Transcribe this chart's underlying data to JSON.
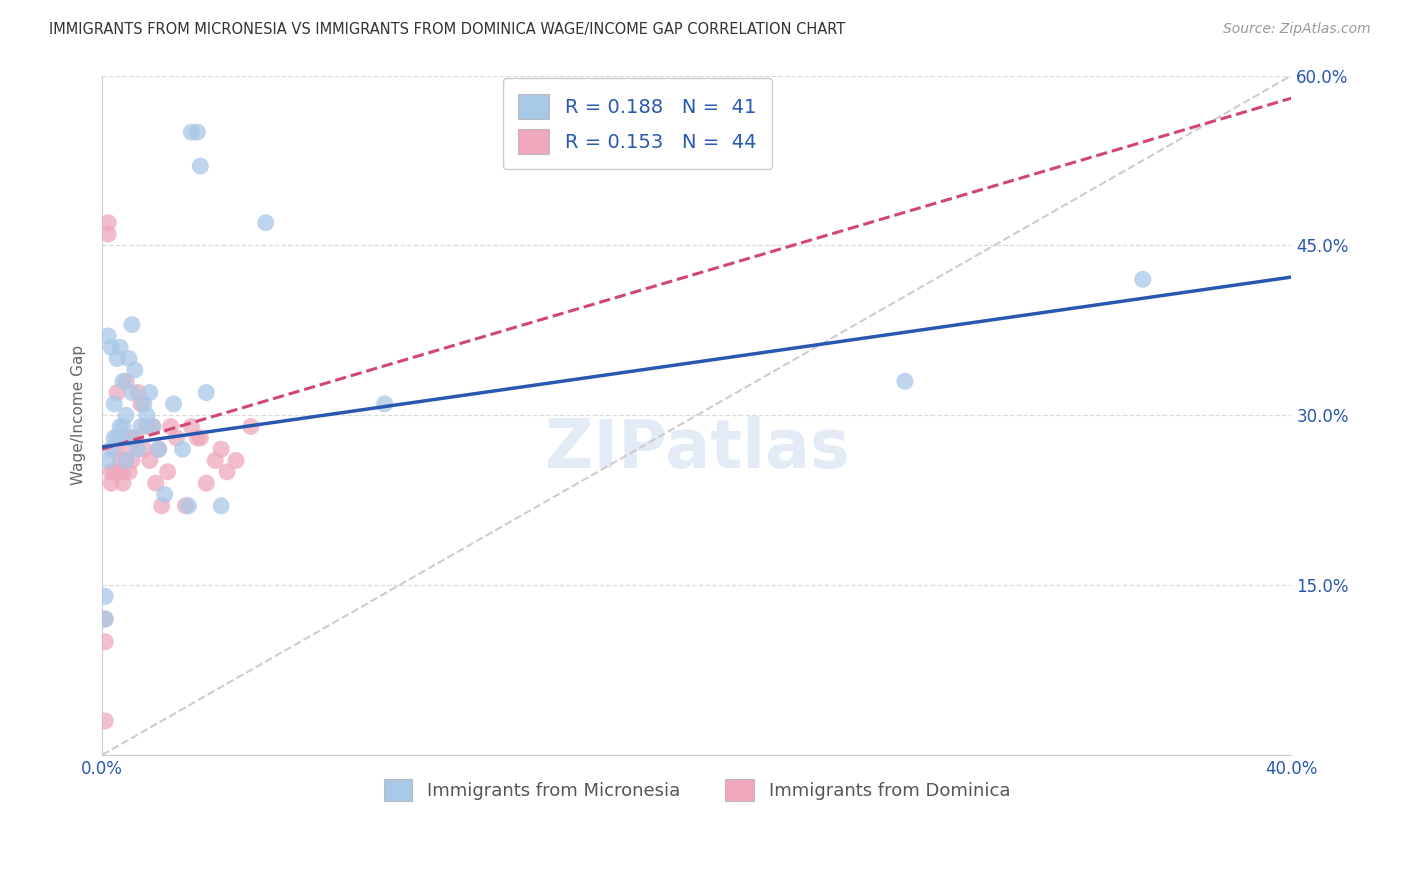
{
  "title": "IMMIGRANTS FROM MICRONESIA VS IMMIGRANTS FROM DOMINICA WAGE/INCOME GAP CORRELATION CHART",
  "source": "Source: ZipAtlas.com",
  "ylabel": "Wage/Income Gap",
  "x_label_micronesia": "Immigrants from Micronesia",
  "x_label_dominica": "Immigrants from Dominica",
  "xlim": [
    0.0,
    0.4
  ],
  "ylim": [
    0.0,
    0.6
  ],
  "xticks": [
    0.0,
    0.05,
    0.1,
    0.15,
    0.2,
    0.25,
    0.3,
    0.35,
    0.4
  ],
  "yticks": [
    0.0,
    0.15,
    0.3,
    0.45,
    0.6
  ],
  "xtick_labels_bottom": [
    "0.0%",
    "",
    "",
    "",
    "",
    "",
    "",
    "",
    "40.0%"
  ],
  "ytick_labels_right": [
    "",
    "15.0%",
    "30.0%",
    "45.0%",
    "60.0%"
  ],
  "background_color": "#ffffff",
  "grid_color": "#d8d8d8",
  "blue_color": "#a8c8e8",
  "pink_color": "#f0a8bc",
  "blue_line_color": "#2858b0",
  "pink_line_color": "#d04870",
  "ref_line_color": "#c8c8c8",
  "axis_color": "#cccccc",
  "tick_color": "#2858b0",
  "R_blue": 0.188,
  "N_blue": 41,
  "R_pink": 0.153,
  "N_pink": 44,
  "legend_text_color": "#2858b0",
  "ylabel_color": "#666666",
  "blue_trend_x": [
    0.0,
    0.4
  ],
  "blue_trend_y": [
    0.272,
    0.422
  ],
  "pink_trend_x": [
    0.0,
    0.4
  ],
  "pink_trend_y": [
    0.27,
    0.58
  ],
  "ref_line_x": [
    0.0,
    0.4
  ],
  "ref_line_y": [
    0.0,
    0.6
  ],
  "micronesia_x": [
    0.001,
    0.001,
    0.002,
    0.002,
    0.003,
    0.003,
    0.004,
    0.004,
    0.005,
    0.005,
    0.006,
    0.006,
    0.007,
    0.007,
    0.008,
    0.008,
    0.009,
    0.009,
    0.01,
    0.01,
    0.011,
    0.012,
    0.013,
    0.014,
    0.015,
    0.016,
    0.017,
    0.019,
    0.021,
    0.024,
    0.027,
    0.029,
    0.03,
    0.032,
    0.033,
    0.035,
    0.04,
    0.055,
    0.095,
    0.27,
    0.35
  ],
  "micronesia_y": [
    0.14,
    0.12,
    0.26,
    0.37,
    0.36,
    0.27,
    0.31,
    0.28,
    0.35,
    0.28,
    0.29,
    0.36,
    0.33,
    0.29,
    0.26,
    0.3,
    0.35,
    0.28,
    0.32,
    0.38,
    0.34,
    0.27,
    0.29,
    0.31,
    0.3,
    0.32,
    0.29,
    0.27,
    0.23,
    0.31,
    0.27,
    0.22,
    0.55,
    0.55,
    0.52,
    0.32,
    0.22,
    0.47,
    0.31,
    0.33,
    0.42
  ],
  "dominica_x": [
    0.001,
    0.001,
    0.001,
    0.002,
    0.002,
    0.003,
    0.003,
    0.004,
    0.004,
    0.005,
    0.005,
    0.006,
    0.006,
    0.007,
    0.007,
    0.008,
    0.008,
    0.009,
    0.009,
    0.01,
    0.01,
    0.011,
    0.012,
    0.013,
    0.014,
    0.015,
    0.016,
    0.017,
    0.018,
    0.019,
    0.02,
    0.022,
    0.023,
    0.025,
    0.028,
    0.03,
    0.032,
    0.033,
    0.035,
    0.038,
    0.04,
    0.042,
    0.045,
    0.05
  ],
  "dominica_y": [
    0.03,
    0.12,
    0.1,
    0.47,
    0.46,
    0.25,
    0.24,
    0.27,
    0.25,
    0.32,
    0.25,
    0.28,
    0.26,
    0.24,
    0.25,
    0.33,
    0.26,
    0.25,
    0.27,
    0.26,
    0.28,
    0.28,
    0.32,
    0.31,
    0.27,
    0.29,
    0.26,
    0.29,
    0.24,
    0.27,
    0.22,
    0.25,
    0.29,
    0.28,
    0.22,
    0.29,
    0.28,
    0.28,
    0.24,
    0.26,
    0.27,
    0.25,
    0.26,
    0.29
  ]
}
